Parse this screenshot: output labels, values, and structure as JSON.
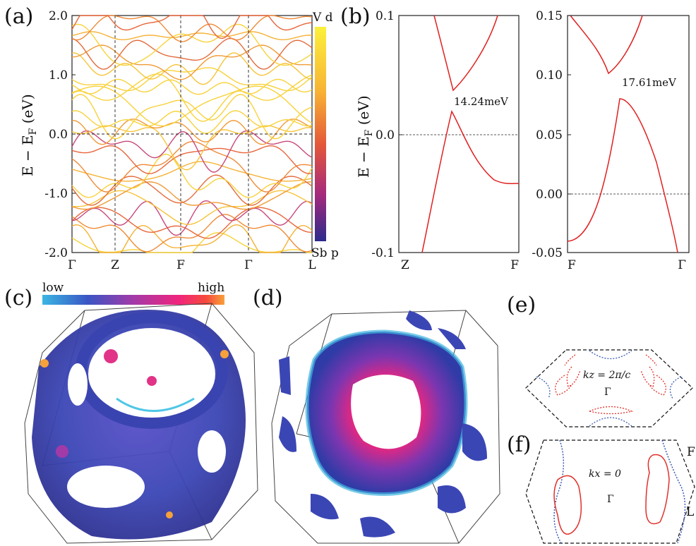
{
  "panels": {
    "a": {
      "label": "(a)",
      "ylabel": "E − E",
      "ylabel_sub": "F",
      "ylabel_unit": " (eV)",
      "yticks": [
        "2.0",
        "1.0",
        "0.0",
        "-1.0",
        "-2.0"
      ],
      "xticks": [
        "Γ",
        "Z",
        "F",
        "Γ",
        "L"
      ],
      "colorbar_top": "V d",
      "colorbar_bottom": "Sb p"
    },
    "b": {
      "label": "(b)",
      "ylabel": "E − E",
      "ylabel_sub": "F",
      "ylabel_unit": " (eV)",
      "left": {
        "yticks": [
          "0.1",
          "0.0",
          "-0.1"
        ],
        "xticks": [
          "Z",
          "F"
        ],
        "gap_label": "14.24meV"
      },
      "right": {
        "yticks": [
          "0.15",
          "0.10",
          "0.05",
          "0.00",
          "-0.05"
        ],
        "xticks": [
          "F",
          "Γ"
        ],
        "gap_label": "17.61meV"
      }
    },
    "c": {
      "label": "(c)",
      "colorbar_low": "low",
      "colorbar_high": "high"
    },
    "d": {
      "label": "(d)"
    },
    "e": {
      "label": "(e)",
      "kz_label": "kz = 2π/c",
      "center_label": "Γ"
    },
    "f": {
      "label": "(f)",
      "kx_label": "kx = 0",
      "center_label": "Γ",
      "edge_f": "F",
      "edge_l": "L"
    }
  },
  "chart_data": [
    {
      "type": "line",
      "panel": "a",
      "description_free": true,
      "xlabel": "",
      "ylabel": "E − E_F (eV)",
      "ylim": [
        -2.0,
        2.0
      ],
      "x_ticks": [
        "Γ",
        "Z",
        "F",
        "Γ",
        "L"
      ],
      "colorbar": [
        "V d",
        "Sb p"
      ],
      "colors": {
        "v_d": "#f9e24b",
        "sb_p": "#2b2a8a",
        "mid": "#e4573a"
      }
    },
    {
      "type": "line",
      "panel": "b-left",
      "ylim": [
        -0.1,
        0.1
      ],
      "x_ticks": [
        "Z",
        "F"
      ],
      "annotation": "14.24meV",
      "series": [
        {
          "values_upper_min": 0.039
        },
        {
          "values_lower_max": 0.025
        }
      ],
      "line_color": "#e02020"
    },
    {
      "type": "line",
      "panel": "b-right",
      "ylim": [
        -0.05,
        0.15
      ],
      "x_ticks": [
        "F",
        "Γ"
      ],
      "annotation": "17.61meV",
      "series": [
        {
          "values_upper_min": 0.101
        },
        {
          "values_lower_max": 0.083
        }
      ],
      "line_color": "#e02020"
    }
  ]
}
